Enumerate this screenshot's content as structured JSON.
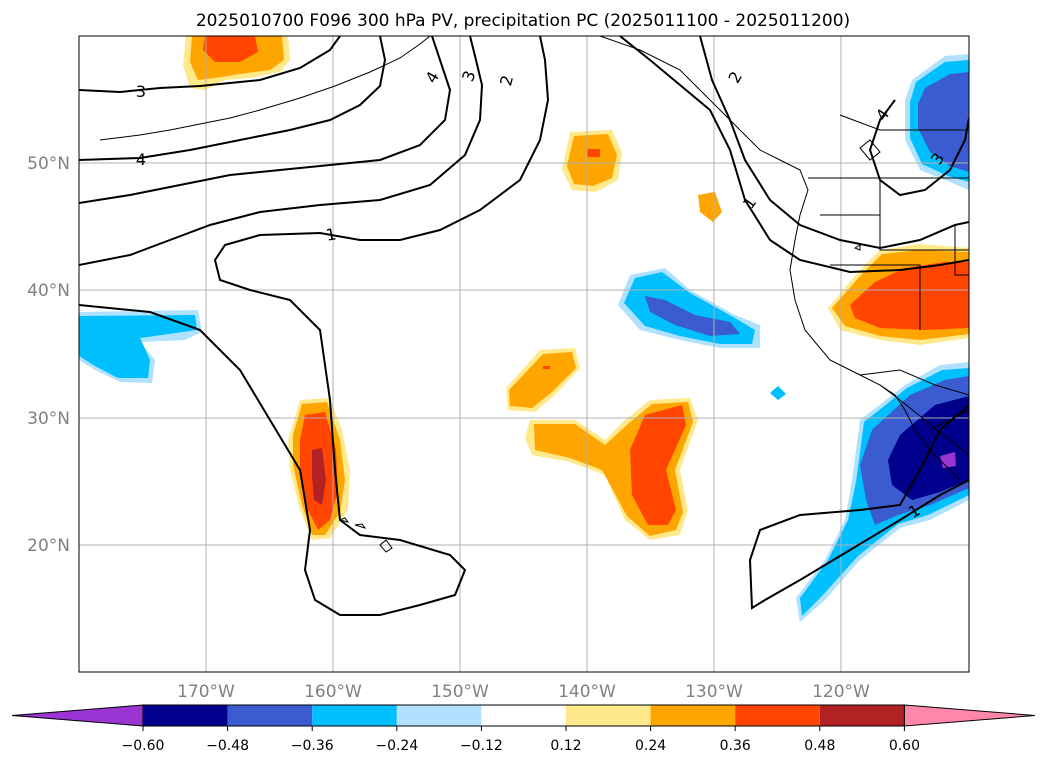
{
  "title": "2025010700 F096 300 hPa PV, precipitation PC (2025011100 - 2025011200)",
  "map": {
    "lon_range": [
      -180,
      -110
    ],
    "lat_range": [
      10,
      60
    ],
    "lat_labels": [
      "20°N",
      "30°N",
      "40°N",
      "50°N"
    ],
    "lon_labels": [
      "170°W",
      "160°W",
      "150°W",
      "140°W",
      "130°W",
      "120°W"
    ],
    "contour_labels": [
      "3",
      "4",
      "4",
      "3",
      "2",
      "2",
      "1",
      "1",
      "4",
      "3",
      "1"
    ]
  },
  "colorbar": {
    "colors": [
      "#9a34d2",
      "#00008c",
      "#3b5bd0",
      "#00bfff",
      "#b0e2ff",
      "#ffffff",
      "#ffe98a",
      "#ffa500",
      "#ff4500",
      "#b22222",
      "#ff88aa"
    ],
    "ticks": [
      "−0.60",
      "−0.48",
      "−0.36",
      "−0.24",
      "−0.12",
      "0.12",
      "0.24",
      "0.36",
      "0.48",
      "0.60"
    ]
  },
  "colors": {
    "grid": "#b0b0b0",
    "axis_label": "#808080",
    "frame": "#000000"
  }
}
